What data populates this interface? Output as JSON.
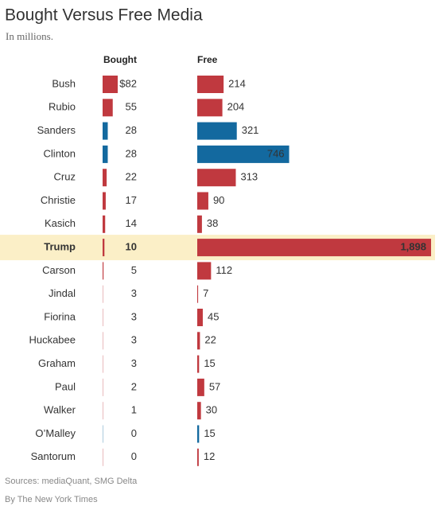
{
  "chart_data": {
    "type": "bar",
    "orientation": "horizontal",
    "title": "Bought Versus Free Media",
    "subtitle": "In millions.",
    "categories": [
      "Bush",
      "Rubio",
      "Sanders",
      "Clinton",
      "Cruz",
      "Christie",
      "Kasich",
      "Trump",
      "Carson",
      "Jindal",
      "Fiorina",
      "Huckabee",
      "Graham",
      "Paul",
      "Walker",
      "O’Malley",
      "Santorum"
    ],
    "highlight_category": "Trump",
    "series": [
      {
        "name": "Bought",
        "values": [
          82,
          55,
          28,
          28,
          22,
          17,
          14,
          10,
          5,
          3,
          3,
          3,
          3,
          2,
          1,
          0,
          0
        ],
        "value_labels": [
          "$82",
          "55",
          "28",
          "28",
          "22",
          "17",
          "14",
          "10",
          "5",
          "3",
          "3",
          "3",
          "3",
          "2",
          "1",
          "0",
          "0"
        ],
        "colors": [
          "#c0393f",
          "#c0393f",
          "#13699f",
          "#13699f",
          "#c0393f",
          "#c0393f",
          "#c0393f",
          "#c0393f",
          "#c0393f",
          "#c0393f",
          "#c0393f",
          "#c0393f",
          "#c0393f",
          "#c0393f",
          "#c0393f",
          "#13699f",
          "#c0393f"
        ]
      },
      {
        "name": "Free",
        "values": [
          214,
          204,
          321,
          746,
          313,
          90,
          38,
          1898,
          112,
          7,
          45,
          22,
          15,
          57,
          30,
          15,
          12
        ],
        "value_labels": [
          "214",
          "204",
          "321",
          "746",
          "313",
          "90",
          "38",
          "1,898",
          "112",
          "7",
          "45",
          "22",
          "15",
          "57",
          "30",
          "15",
          "12"
        ],
        "colors": [
          "#c0393f",
          "#c0393f",
          "#13699f",
          "#13699f",
          "#c0393f",
          "#c0393f",
          "#c0393f",
          "#c0393f",
          "#c0393f",
          "#c0393f",
          "#c0393f",
          "#c0393f",
          "#c0393f",
          "#c0393f",
          "#c0393f",
          "#13699f",
          "#c0393f"
        ]
      }
    ],
    "sources": "Sources: mediaQuant, SMG Delta",
    "credit": "By The New York Times"
  }
}
